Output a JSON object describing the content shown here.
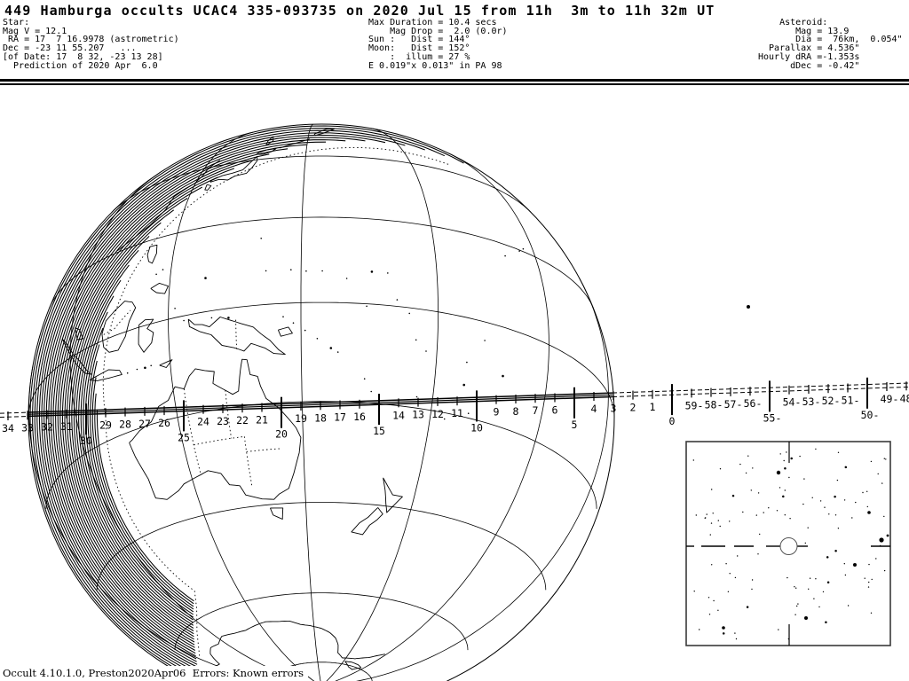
{
  "window": {
    "bg": "#ffffff",
    "ink": "#000000"
  },
  "header": {
    "title": "449 Hamburga occults UCAC4 335-093735 on 2020 Jul 15 from 11h  3m to 11h 32m UT",
    "star_block": "Star:\nMag V = 12.1\n RA = 17  7 16.9978 (astrometric)\nDec = -23 11 55.207   ...\n[of Date: 17  8 32, -23 13 28]\n  Prediction of 2020 Apr  6.0",
    "event_block": "Max Duration = 10.4 secs\n    Mag Drop =  2.0 (0.0r)\nSun :   Dist = 144°\nMoon:   Dist = 152°\n    :  illum = 27 %\nE 0.019\"x 0.013\" in PA 98",
    "asteroid_block": "    Asteroid:\n       Mag = 13.9\n       Dia =  76km,  0.054\"\n  Parallax = 4.536\"\nHourly dRA =-1.353s\n      dDec = -0.42\""
  },
  "map": {
    "tick_labels": [
      "34",
      "33",
      "32",
      "31",
      "30",
      "29",
      "28",
      "27",
      "26",
      "25",
      "24",
      "23",
      "22",
      "21",
      "20",
      "19",
      "18",
      "17",
      "16",
      "15",
      "14",
      "13",
      "12",
      "11",
      "10",
      "9",
      "8",
      "7",
      "6",
      "5",
      "4",
      "3",
      "2",
      "1",
      "0",
      "59-",
      "58-",
      "57-",
      "56-",
      "55-",
      "54-",
      "53-",
      "52-",
      "51-",
      "50-",
      "49-",
      "48-"
    ]
  },
  "footer": {
    "text": "Occult 4.10.1.0, Preston2020Apr06  Errors: Known errors"
  }
}
